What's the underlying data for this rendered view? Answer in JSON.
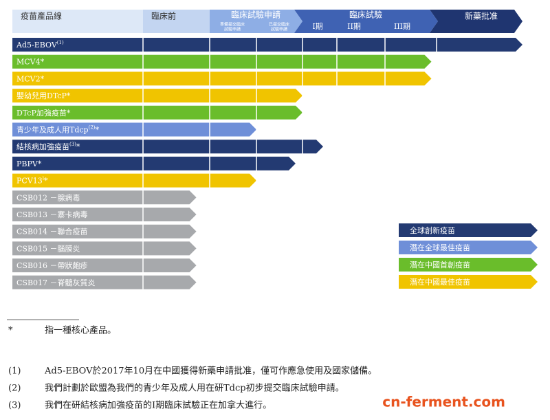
{
  "header": {
    "product": "疫苗產品線",
    "preclinical": "臨床前",
    "ind": "臨床試驗申請",
    "ind_sub": [
      [
        "準備提交臨床",
        "試驗申請"
      ],
      [
        "已提交臨床",
        "試驗申請"
      ]
    ],
    "clinical": "臨床試驗",
    "phases": [
      "I期",
      "II期",
      "III期"
    ],
    "approval": "新藥批准"
  },
  "rows": [
    {
      "name": "Ad5-EBOV",
      "note": "(1)",
      "color": "#233a72",
      "progress": 7
    },
    {
      "name": "MCV4*",
      "color": "#6abd2b",
      "progress": 5.9
    },
    {
      "name": "MCV2*",
      "color": "#f0c400",
      "progress": 5.9
    },
    {
      "name": "嬰幼兒用DTcP*",
      "color": "#f0c400",
      "progress": 3.0
    },
    {
      "name": "DTcP加強疫苗*",
      "color": "#6abd2b",
      "progress": 3.0
    },
    {
      "name": "青少年及成人用Tdcp",
      "note": "(2)",
      "suffix": "*",
      "color": "#6f8fd8",
      "progress": 2.0
    },
    {
      "name": "結核病加強疫苗",
      "note": "(3)",
      "suffix": "*",
      "color": "#233a72",
      "progress": 3.6
    },
    {
      "name": "PBPV*",
      "color": "#233a72",
      "progress": 2.85
    },
    {
      "name": "PCV13",
      "note": "i",
      "suffix": "*",
      "color": "#f0c400",
      "progress": 2.0
    },
    {
      "name": "CSB012 －腺病毒",
      "color": "#a7a9ac",
      "progress": 0.8
    },
    {
      "name": "CSB013 －寨卡病毒",
      "color": "#a7a9ac",
      "progress": 0.8
    },
    {
      "name": "CSB014 －聯合疫苗",
      "color": "#a7a9ac",
      "progress": 0.8
    },
    {
      "name": "CSB015 －腦膜炎",
      "color": "#a7a9ac",
      "progress": 0.8
    },
    {
      "name": "CSB016 －帶狀皰疹",
      "color": "#a7a9ac",
      "progress": 0.8
    },
    {
      "name": "CSB017 －脊髓灰質炎",
      "color": "#a7a9ac",
      "progress": 0.8
    }
  ],
  "legend": [
    {
      "label": "全球創新疫苗",
      "color": "#233a72"
    },
    {
      "label": "潛在全球最佳疫苗",
      "color": "#6f8fd8"
    },
    {
      "label": "潛在中國首創疫苗",
      "color": "#6abd2b"
    },
    {
      "label": "潛在中國最佳疫苗",
      "color": "#f0c400"
    }
  ],
  "footnotes": [
    {
      "marker": "*",
      "text": "指一種核心產品。"
    },
    {
      "marker": "(1)",
      "text": "Ad5-EBOV於2017年10月在中國獲得新藥申請批准，僅可作應急使用及國家儲備。"
    },
    {
      "marker": "(2)",
      "text": "我們計劃於歐盟為我們的青少年及成人用在研Tdcp初步提交臨床試驗申請。"
    },
    {
      "marker": "(3)",
      "text": "我們在研結核病加強疫苗的I期臨床試驗正在加拿大進行。"
    }
  ],
  "watermark": "cn-ferment.com"
}
